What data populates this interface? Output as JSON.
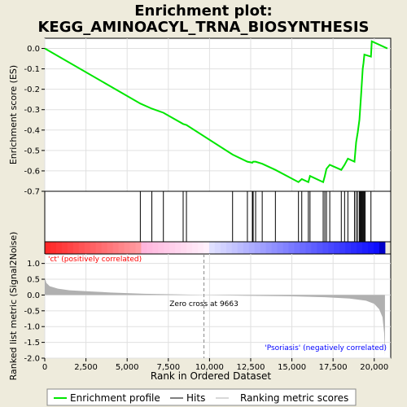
{
  "chart_data": {
    "type": "line",
    "title_line1": "Enrichment plot:",
    "title_line2": "KEGG_AMINOACYL_TRNA_BIOSYNTHESIS",
    "es_ylabel": "Enrichment score (ES)",
    "metric_ylabel": "Ranked list metric (Signal2Noise)",
    "xlabel": "Rank in Ordered Dataset",
    "x_range": [
      0,
      21000
    ],
    "x_ticks": [
      0,
      2500,
      5000,
      7500,
      10000,
      12500,
      15000,
      17500,
      20000
    ],
    "x_tick_labels": [
      "0",
      "2,500",
      "5,000",
      "7,500",
      "10,000",
      "12,500",
      "15,000",
      "17,500",
      "20,000"
    ],
    "es_range": [
      -0.7,
      0.05
    ],
    "es_ticks": [
      0.0,
      -0.1,
      -0.2,
      -0.3,
      -0.4,
      -0.5,
      -0.6,
      -0.7
    ],
    "es_tick_labels": [
      "0.0",
      "-0.1",
      "-0.2",
      "-0.3",
      "-0.4",
      "-0.5",
      "-0.6",
      "-0.7"
    ],
    "metric_range": [
      -2.0,
      1.3
    ],
    "metric_ticks": [
      1.0,
      0.5,
      0.0,
      -0.5,
      -1.0,
      -1.5,
      -2.0
    ],
    "metric_tick_labels": [
      "1.0",
      "0.5",
      "0.0",
      "-0.5",
      "-1.0",
      "-1.5",
      "-2.0"
    ],
    "zero_cross": 9663,
    "zero_cross_label": "Zero cross at 9663",
    "pos_label": "'ct' (positively correlated)",
    "neg_label": "'Psoriasis' (negatively correlated)",
    "hits": [
      5800,
      6500,
      7200,
      8400,
      8600,
      11400,
      12300,
      12600,
      12650,
      12800,
      13200,
      14000,
      15400,
      15600,
      16000,
      16100,
      16900,
      17000,
      17100,
      17300,
      18000,
      18200,
      18400,
      18800,
      18900,
      19000,
      19100,
      19150,
      19200,
      19250,
      19300,
      19350,
      19400,
      19450,
      19800
    ],
    "es_curve": [
      [
        0,
        0.0
      ],
      [
        5800,
        -0.27
      ],
      [
        6500,
        -0.295
      ],
      [
        7200,
        -0.315
      ],
      [
        8400,
        -0.37
      ],
      [
        8600,
        -0.375
      ],
      [
        11400,
        -0.52
      ],
      [
        12300,
        -0.555
      ],
      [
        12600,
        -0.56
      ],
      [
        12650,
        -0.555
      ],
      [
        12800,
        -0.555
      ],
      [
        13200,
        -0.565
      ],
      [
        14000,
        -0.595
      ],
      [
        15400,
        -0.655
      ],
      [
        15600,
        -0.64
      ],
      [
        16000,
        -0.655
      ],
      [
        16100,
        -0.625
      ],
      [
        16900,
        -0.655
      ],
      [
        17000,
        -0.625
      ],
      [
        17100,
        -0.59
      ],
      [
        17300,
        -0.57
      ],
      [
        18000,
        -0.595
      ],
      [
        18200,
        -0.57
      ],
      [
        18400,
        -0.54
      ],
      [
        18800,
        -0.555
      ],
      [
        18900,
        -0.46
      ],
      [
        19000,
        -0.41
      ],
      [
        19100,
        -0.35
      ],
      [
        19150,
        -0.29
      ],
      [
        19200,
        -0.23
      ],
      [
        19250,
        -0.165
      ],
      [
        19300,
        -0.1
      ],
      [
        19350,
        -0.07
      ],
      [
        19400,
        -0.03
      ],
      [
        19800,
        -0.04
      ],
      [
        19850,
        0.035
      ],
      [
        20800,
        0.0
      ]
    ],
    "metric_curve": [
      [
        0,
        0.55
      ],
      [
        100,
        0.38
      ],
      [
        300,
        0.28
      ],
      [
        800,
        0.2
      ],
      [
        1500,
        0.15
      ],
      [
        2500,
        0.12
      ],
      [
        4000,
        0.08
      ],
      [
        6000,
        0.04
      ],
      [
        8000,
        0.02
      ],
      [
        9663,
        0.0
      ],
      [
        12000,
        -0.02
      ],
      [
        15000,
        -0.04
      ],
      [
        17000,
        -0.07
      ],
      [
        18500,
        -0.11
      ],
      [
        19500,
        -0.18
      ],
      [
        20000,
        -0.28
      ],
      [
        20300,
        -0.45
      ],
      [
        20500,
        -0.7
      ],
      [
        20600,
        -1.2
      ],
      [
        20650,
        -1.9
      ]
    ],
    "legend": [
      "Enrichment profile",
      "Hits",
      "Ranking metric scores"
    ],
    "colors": {
      "es_line": "#00e600",
      "metric_fill": "#b0b0b0",
      "pos_bar": "#ff0000",
      "neg_bar": "#0000ff",
      "pos_text": "#ff0000",
      "neg_text": "#0000ff"
    }
  }
}
